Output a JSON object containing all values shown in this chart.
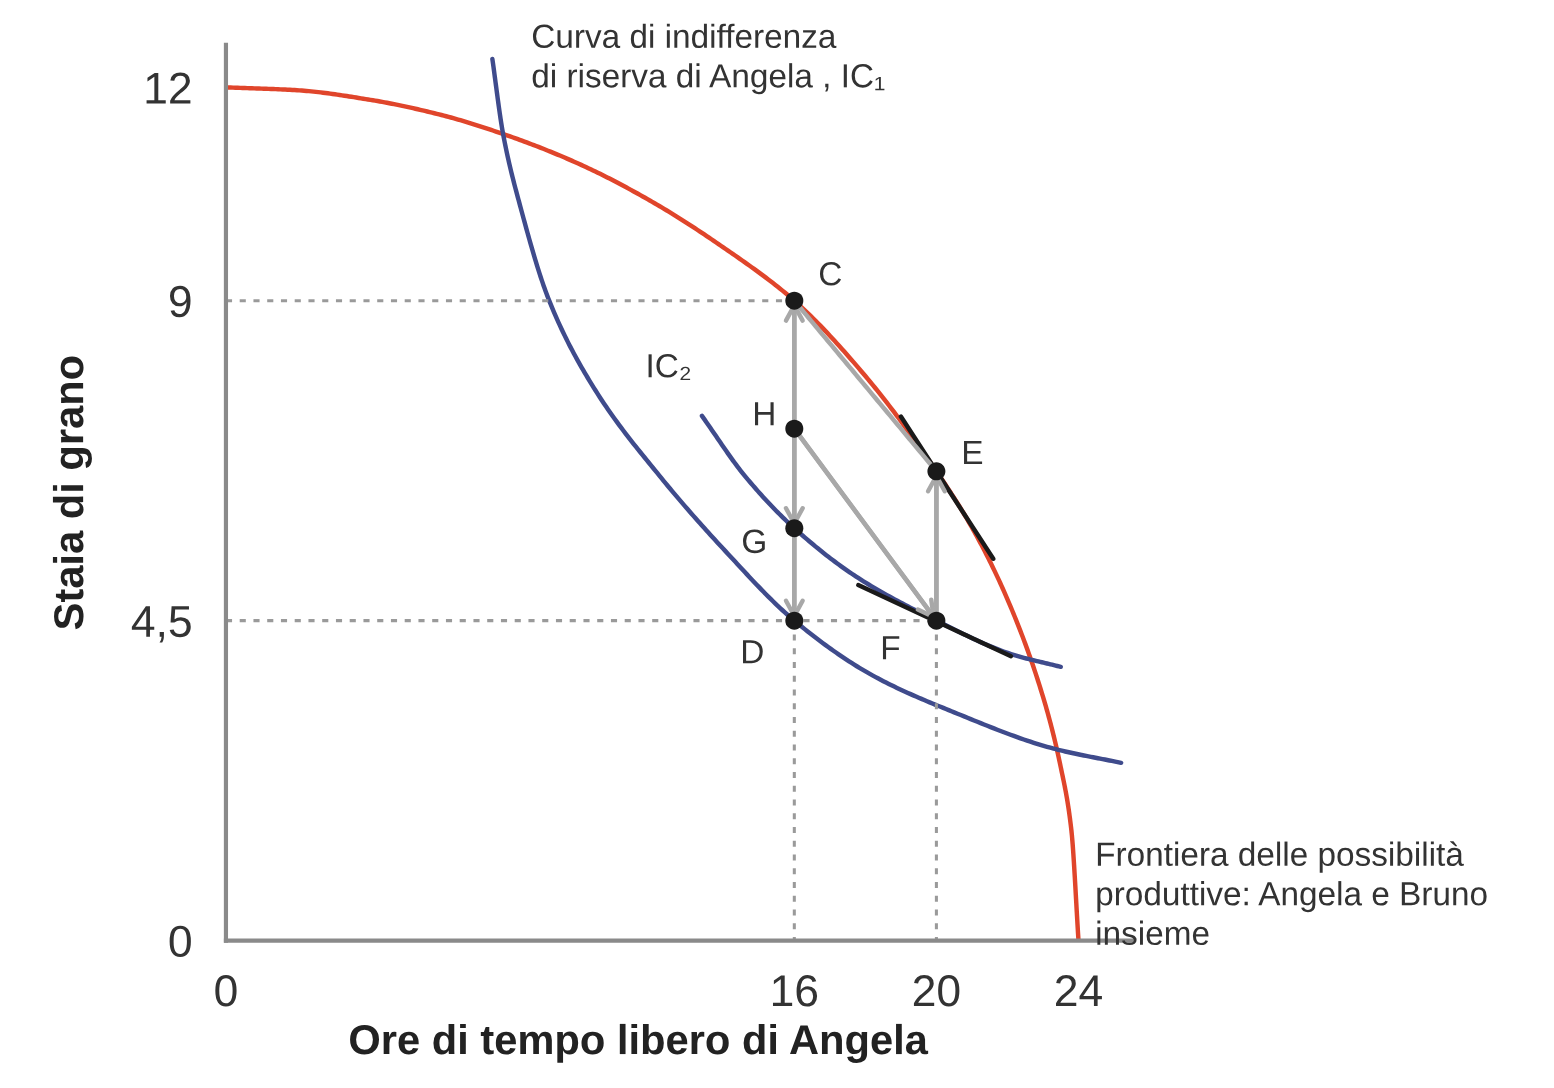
{
  "chart_data": {
    "type": "line",
    "xlabel": "Ore di tempo libero di Angela",
    "ylabel": "Staia di grano",
    "xlim": [
      0,
      25.5
    ],
    "ylim": [
      0,
      12.6
    ],
    "xticks": [
      0,
      16,
      20,
      24
    ],
    "yticks": [
      0,
      {
        "value": 4.5,
        "label": "4,5"
      },
      9,
      12
    ],
    "grid": false,
    "legend": false,
    "series": [
      {
        "name": "Frontiera delle possibilità\nproduttive: Angela e Bruno\ninsieme",
        "color": "#e0452b",
        "x": [
          0,
          2,
          4,
          6,
          8,
          10,
          12,
          14,
          16,
          18,
          20,
          21,
          22,
          23,
          23.5,
          23.8,
          24
        ],
        "values": [
          12,
          11.96,
          11.83,
          11.62,
          11.31,
          10.91,
          10.39,
          9.75,
          9,
          7.94,
          6.6,
          5.81,
          4.8,
          3.43,
          2.44,
          1.55,
          0
        ]
      },
      {
        "name": "Curva di indifferenza\ndi riserva di Angela , IC₁",
        "color": "#3f4b8c",
        "x": [
          7.5,
          7.8,
          8.3,
          9.1,
          10.4,
          12.2,
          14.0,
          16,
          18.2,
          20.5,
          23.3,
          25.2
        ],
        "values": [
          12.4,
          11.35,
          10.3,
          9.0,
          7.74,
          6.54,
          5.51,
          4.5,
          3.73,
          3.21,
          2.7,
          2.5
        ]
      },
      {
        "name": "IC₂",
        "color": "#3f4b8c",
        "x": [
          13.4,
          14.6,
          16,
          17.8,
          20,
          22.1,
          23.5
        ],
        "values": [
          7.38,
          6.54,
          5.8,
          5.1,
          4.5,
          4.03,
          3.85
        ]
      },
      {
        "color": "#1a1a1a",
        "x": [
          19.0,
          21.6
        ],
        "values": [
          7.37,
          5.37
        ]
      },
      {
        "color": "#1a1a1a",
        "x": [
          17.8,
          22.1
        ],
        "values": [
          5.0,
          4.0
        ]
      },
      {
        "color": "#9a9a9a",
        "line_style": "dotted",
        "x": [
          0,
          16
        ],
        "values": [
          9,
          9
        ]
      },
      {
        "color": "#9a9a9a",
        "line_style": "dotted",
        "x": [
          0,
          20
        ],
        "values": [
          4.5,
          4.5
        ]
      },
      {
        "color": "#9a9a9a",
        "line_style": "dotted",
        "x": [
          16,
          16
        ],
        "values": [
          4.5,
          0
        ]
      },
      {
        "color": "#9a9a9a",
        "line_style": "dotted",
        "x": [
          20,
          20
        ],
        "values": [
          4.5,
          0
        ]
      },
      {
        "color": "#a8a8a8",
        "x": [
          16,
          18,
          20
        ],
        "values": [
          9,
          7.8,
          6.6
        ]
      },
      {
        "color": "#a8a8a8",
        "x": [
          16,
          16
        ],
        "values": [
          7.2,
          9
        ]
      },
      {
        "color": "#a8a8a8",
        "x": [
          16,
          16
        ],
        "values": [
          7.2,
          5.8
        ]
      },
      {
        "color": "#a8a8a8",
        "x": [
          16,
          16
        ],
        "values": [
          5.8,
          4.5
        ]
      },
      {
        "color": "#a8a8a8",
        "x": [
          20,
          20
        ],
        "values": [
          4.5,
          6.6
        ]
      },
      {
        "color": "#a8a8a8",
        "x": [
          16,
          20
        ],
        "values": [
          7.2,
          4.5
        ]
      },
      {
        "type": "scatter",
        "color": "#1a1a1a",
        "marker": "circle",
        "x": [
          16,
          16,
          20,
          20,
          16,
          16
        ],
        "values": [
          9,
          4.5,
          6.6,
          4.5,
          5.8,
          7.2
        ],
        "value_labels": [
          "C",
          "D",
          "E",
          "F",
          "G",
          "H"
        ]
      }
    ]
  }
}
